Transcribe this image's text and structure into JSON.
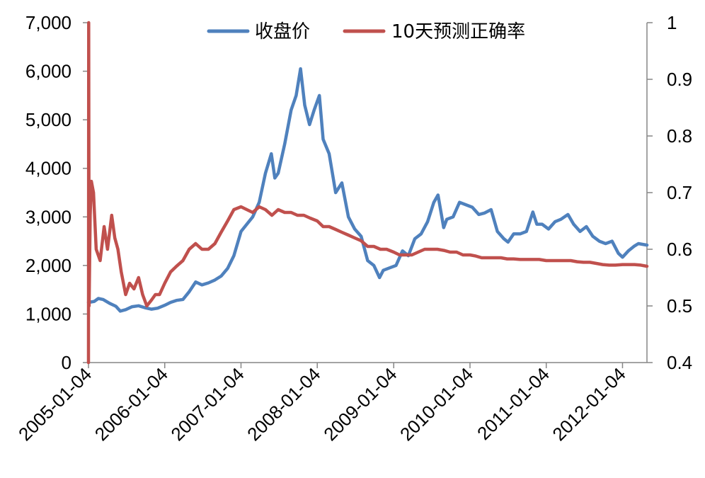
{
  "chart_data": {
    "type": "line",
    "title": "",
    "x_type": "date",
    "x_start": "2005-01-04",
    "x_end": "2012-04-30",
    "x_ticks": [
      "2005-01-04",
      "2006-01-04",
      "2007-01-04",
      "2008-01-04",
      "2009-01-04",
      "2010-01-04",
      "2011-01-04",
      "2012-01-04"
    ],
    "y_left": {
      "min": 0,
      "max": 7000,
      "ticks": [
        0,
        1000,
        2000,
        3000,
        4000,
        5000,
        6000,
        7000
      ],
      "tick_labels": [
        "0",
        "1,000",
        "2,000",
        "3,000",
        "4,000",
        "5,000",
        "6,000",
        "7,000"
      ]
    },
    "y_right": {
      "min": 0.4,
      "max": 1.0,
      "ticks": [
        0.4,
        0.5,
        0.6,
        0.7,
        0.8,
        0.9,
        1.0
      ],
      "tick_labels": [
        "0.4",
        "0.5",
        "0.6",
        "0.7",
        "0.8",
        "0.9",
        "1"
      ]
    },
    "grid": false,
    "legend_position": "top",
    "series": [
      {
        "name": "收盘价",
        "axis": "left",
        "color": "#4F81BD",
        "points": [
          [
            "2005-01-04",
            1240
          ],
          [
            "2005-02-01",
            1260
          ],
          [
            "2005-02-20",
            1320
          ],
          [
            "2005-03-15",
            1300
          ],
          [
            "2005-04-15",
            1220
          ],
          [
            "2005-05-15",
            1160
          ],
          [
            "2005-06-05",
            1060
          ],
          [
            "2005-07-01",
            1090
          ],
          [
            "2005-08-01",
            1150
          ],
          [
            "2005-09-01",
            1170
          ],
          [
            "2005-10-01",
            1130
          ],
          [
            "2005-11-01",
            1100
          ],
          [
            "2005-12-01",
            1120
          ],
          [
            "2006-01-04",
            1180
          ],
          [
            "2006-02-01",
            1240
          ],
          [
            "2006-03-01",
            1280
          ],
          [
            "2006-04-01",
            1300
          ],
          [
            "2006-05-01",
            1460
          ],
          [
            "2006-06-01",
            1660
          ],
          [
            "2006-07-01",
            1600
          ],
          [
            "2006-08-01",
            1640
          ],
          [
            "2006-09-01",
            1700
          ],
          [
            "2006-10-01",
            1780
          ],
          [
            "2006-11-01",
            1940
          ],
          [
            "2006-12-01",
            2200
          ],
          [
            "2007-01-04",
            2700
          ],
          [
            "2007-02-01",
            2850
          ],
          [
            "2007-03-01",
            3000
          ],
          [
            "2007-04-01",
            3300
          ],
          [
            "2007-05-01",
            3900
          ],
          [
            "2007-05-29",
            4300
          ],
          [
            "2007-06-15",
            3800
          ],
          [
            "2007-07-01",
            3900
          ],
          [
            "2007-08-01",
            4500
          ],
          [
            "2007-09-01",
            5200
          ],
          [
            "2007-09-25",
            5500
          ],
          [
            "2007-10-16",
            6050
          ],
          [
            "2007-11-05",
            5300
          ],
          [
            "2007-11-28",
            4900
          ],
          [
            "2007-12-20",
            5200
          ],
          [
            "2008-01-14",
            5500
          ],
          [
            "2008-02-01",
            4600
          ],
          [
            "2008-03-01",
            4300
          ],
          [
            "2008-04-01",
            3500
          ],
          [
            "2008-05-01",
            3700
          ],
          [
            "2008-06-01",
            3000
          ],
          [
            "2008-07-01",
            2750
          ],
          [
            "2008-08-01",
            2600
          ],
          [
            "2008-09-01",
            2100
          ],
          [
            "2008-10-01",
            2000
          ],
          [
            "2008-10-28",
            1750
          ],
          [
            "2008-11-15",
            1900
          ],
          [
            "2008-12-15",
            1950
          ],
          [
            "2009-01-15",
            2000
          ],
          [
            "2009-02-15",
            2300
          ],
          [
            "2009-03-15",
            2200
          ],
          [
            "2009-04-15",
            2550
          ],
          [
            "2009-05-15",
            2650
          ],
          [
            "2009-06-15",
            2900
          ],
          [
            "2009-07-15",
            3300
          ],
          [
            "2009-08-04",
            3450
          ],
          [
            "2009-08-31",
            2780
          ],
          [
            "2009-09-15",
            2950
          ],
          [
            "2009-10-15",
            3000
          ],
          [
            "2009-11-15",
            3300
          ],
          [
            "2009-12-15",
            3250
          ],
          [
            "2010-01-15",
            3200
          ],
          [
            "2010-02-15",
            3050
          ],
          [
            "2010-03-15",
            3080
          ],
          [
            "2010-04-15",
            3150
          ],
          [
            "2010-05-15",
            2700
          ],
          [
            "2010-06-15",
            2550
          ],
          [
            "2010-07-05",
            2480
          ],
          [
            "2010-08-01",
            2650
          ],
          [
            "2010-09-01",
            2650
          ],
          [
            "2010-10-01",
            2700
          ],
          [
            "2010-11-01",
            3100
          ],
          [
            "2010-11-20",
            2850
          ],
          [
            "2010-12-15",
            2850
          ],
          [
            "2011-01-15",
            2750
          ],
          [
            "2011-02-15",
            2900
          ],
          [
            "2011-03-15",
            2950
          ],
          [
            "2011-04-18",
            3050
          ],
          [
            "2011-05-15",
            2850
          ],
          [
            "2011-06-15",
            2700
          ],
          [
            "2011-07-15",
            2800
          ],
          [
            "2011-08-15",
            2600
          ],
          [
            "2011-09-15",
            2500
          ],
          [
            "2011-10-15",
            2450
          ],
          [
            "2011-11-15",
            2500
          ],
          [
            "2011-12-15",
            2250
          ],
          [
            "2012-01-04",
            2170
          ],
          [
            "2012-02-01",
            2300
          ],
          [
            "2012-03-01",
            2400
          ],
          [
            "2012-03-20",
            2450
          ],
          [
            "2012-04-30",
            2420
          ]
        ]
      },
      {
        "name": "10天预测正确率",
        "axis": "right",
        "color": "#C0504D",
        "points": [
          [
            "2005-01-04",
            0.4
          ],
          [
            "2005-01-05",
            1.0
          ],
          [
            "2005-01-07",
            0.5
          ],
          [
            "2005-01-12",
            0.66
          ],
          [
            "2005-01-18",
            0.72
          ],
          [
            "2005-01-28",
            0.7
          ],
          [
            "2005-02-10",
            0.6
          ],
          [
            "2005-03-01",
            0.58
          ],
          [
            "2005-03-20",
            0.64
          ],
          [
            "2005-04-05",
            0.6
          ],
          [
            "2005-04-25",
            0.66
          ],
          [
            "2005-05-10",
            0.62
          ],
          [
            "2005-05-25",
            0.6
          ],
          [
            "2005-06-10",
            0.56
          ],
          [
            "2005-07-01",
            0.52
          ],
          [
            "2005-07-20",
            0.54
          ],
          [
            "2005-08-10",
            0.53
          ],
          [
            "2005-09-01",
            0.55
          ],
          [
            "2005-09-20",
            0.52
          ],
          [
            "2005-10-10",
            0.5
          ],
          [
            "2005-11-01",
            0.51
          ],
          [
            "2005-11-20",
            0.52
          ],
          [
            "2005-12-10",
            0.52
          ],
          [
            "2006-01-04",
            0.54
          ],
          [
            "2006-02-01",
            0.56
          ],
          [
            "2006-03-01",
            0.57
          ],
          [
            "2006-04-01",
            0.58
          ],
          [
            "2006-05-01",
            0.6
          ],
          [
            "2006-06-01",
            0.61
          ],
          [
            "2006-07-01",
            0.6
          ],
          [
            "2006-08-01",
            0.6
          ],
          [
            "2006-09-01",
            0.61
          ],
          [
            "2006-10-01",
            0.63
          ],
          [
            "2006-11-01",
            0.65
          ],
          [
            "2006-12-01",
            0.67
          ],
          [
            "2007-01-04",
            0.675
          ],
          [
            "2007-02-01",
            0.67
          ],
          [
            "2007-03-01",
            0.665
          ],
          [
            "2007-04-01",
            0.675
          ],
          [
            "2007-05-01",
            0.67
          ],
          [
            "2007-06-01",
            0.66
          ],
          [
            "2007-07-01",
            0.67
          ],
          [
            "2007-08-01",
            0.665
          ],
          [
            "2007-09-01",
            0.665
          ],
          [
            "2007-10-01",
            0.66
          ],
          [
            "2007-11-01",
            0.66
          ],
          [
            "2007-12-01",
            0.655
          ],
          [
            "2008-01-04",
            0.65
          ],
          [
            "2008-02-01",
            0.64
          ],
          [
            "2008-03-01",
            0.64
          ],
          [
            "2008-04-01",
            0.635
          ],
          [
            "2008-05-01",
            0.63
          ],
          [
            "2008-06-01",
            0.625
          ],
          [
            "2008-07-01",
            0.62
          ],
          [
            "2008-08-01",
            0.615
          ],
          [
            "2008-09-01",
            0.605
          ],
          [
            "2008-10-01",
            0.605
          ],
          [
            "2008-11-01",
            0.6
          ],
          [
            "2008-12-01",
            0.6
          ],
          [
            "2009-01-04",
            0.595
          ],
          [
            "2009-02-01",
            0.59
          ],
          [
            "2009-03-01",
            0.59
          ],
          [
            "2009-04-01",
            0.59
          ],
          [
            "2009-05-01",
            0.595
          ],
          [
            "2009-06-01",
            0.6
          ],
          [
            "2009-07-01",
            0.6
          ],
          [
            "2009-08-01",
            0.6
          ],
          [
            "2009-09-01",
            0.598
          ],
          [
            "2009-10-01",
            0.595
          ],
          [
            "2009-11-01",
            0.595
          ],
          [
            "2009-12-01",
            0.59
          ],
          [
            "2010-01-04",
            0.59
          ],
          [
            "2010-02-01",
            0.588
          ],
          [
            "2010-03-01",
            0.585
          ],
          [
            "2010-04-01",
            0.585
          ],
          [
            "2010-05-01",
            0.585
          ],
          [
            "2010-06-01",
            0.585
          ],
          [
            "2010-07-01",
            0.583
          ],
          [
            "2010-08-01",
            0.583
          ],
          [
            "2010-09-01",
            0.582
          ],
          [
            "2010-10-01",
            0.582
          ],
          [
            "2010-11-01",
            0.582
          ],
          [
            "2010-12-01",
            0.582
          ],
          [
            "2011-01-04",
            0.58
          ],
          [
            "2011-02-01",
            0.58
          ],
          [
            "2011-03-01",
            0.58
          ],
          [
            "2011-04-01",
            0.58
          ],
          [
            "2011-05-01",
            0.58
          ],
          [
            "2011-06-01",
            0.578
          ],
          [
            "2011-07-01",
            0.577
          ],
          [
            "2011-08-01",
            0.577
          ],
          [
            "2011-09-01",
            0.575
          ],
          [
            "2011-10-01",
            0.573
          ],
          [
            "2011-11-01",
            0.572
          ],
          [
            "2011-12-01",
            0.572
          ],
          [
            "2012-01-04",
            0.573
          ],
          [
            "2012-02-01",
            0.573
          ],
          [
            "2012-03-01",
            0.573
          ],
          [
            "2012-04-01",
            0.572
          ],
          [
            "2012-04-30",
            0.57
          ]
        ]
      }
    ]
  }
}
